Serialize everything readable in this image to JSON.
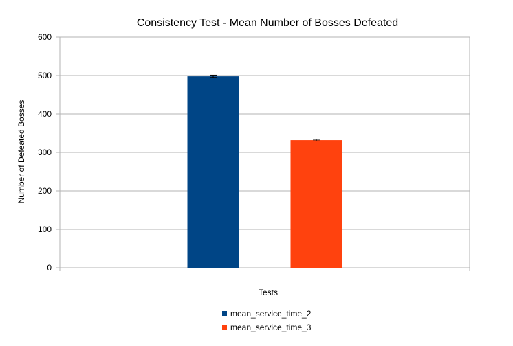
{
  "chart_data": {
    "type": "bar",
    "title": "Consistency Test - Mean Number of Bosses Defeated",
    "xlabel": "Tests",
    "ylabel": "Number of Defeated Bosses",
    "ylim": [
      0,
      600
    ],
    "yticks": [
      0,
      100,
      200,
      300,
      400,
      500,
      600
    ],
    "grid": true,
    "legend_position": "bottom",
    "series": [
      {
        "name": "mean_service_time_2",
        "value": 498,
        "error": 3,
        "color": "#004586"
      },
      {
        "name": "mean_service_time_3",
        "value": 332,
        "error": 2,
        "color": "#ff420e"
      }
    ]
  }
}
